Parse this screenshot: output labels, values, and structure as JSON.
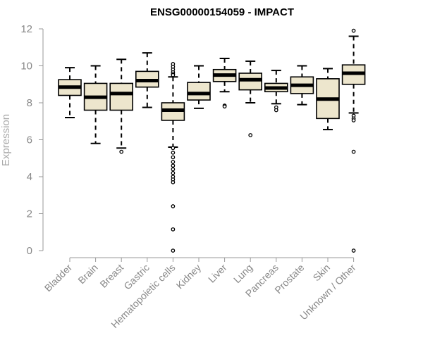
{
  "chart_data": {
    "type": "boxplot",
    "title": "ENSG00000154059 - IMPACT",
    "xlabel": "",
    "ylabel": "Expression",
    "ylim": [
      0,
      12
    ],
    "yticks": [
      0,
      2,
      4,
      6,
      8,
      10,
      12
    ],
    "grid": false,
    "box_fill": "#ede6cd",
    "box_stroke": "#000000",
    "categories": [
      "Bladder",
      "Brain",
      "Breast",
      "Gastric",
      "Hematopoietic cells",
      "Kidney",
      "Liver",
      "Lung",
      "Pancreas",
      "Prostate",
      "Skin",
      "Unknown / Other"
    ],
    "boxes": [
      {
        "low": 7.2,
        "q1": 8.4,
        "median": 8.85,
        "q3": 9.25,
        "high": 9.9,
        "outliers": []
      },
      {
        "low": 5.8,
        "q1": 7.6,
        "median": 8.3,
        "q3": 9.05,
        "high": 10.0,
        "outliers": []
      },
      {
        "low": 5.55,
        "q1": 7.6,
        "median": 8.5,
        "q3": 9.05,
        "high": 10.35,
        "outliers": [
          5.35
        ]
      },
      {
        "low": 7.75,
        "q1": 8.85,
        "median": 9.2,
        "q3": 9.7,
        "high": 10.7,
        "outliers": []
      },
      {
        "low": 5.6,
        "q1": 7.05,
        "median": 7.6,
        "q3": 8.0,
        "high": 9.4,
        "outliers": [
          10.1,
          9.95,
          9.8,
          9.65,
          9.55,
          9.5,
          5.55,
          5.3,
          5.05,
          4.8,
          4.6,
          4.4,
          4.2,
          4.0,
          3.85,
          3.7,
          2.4,
          1.15,
          0.0
        ]
      },
      {
        "low": 7.7,
        "q1": 8.15,
        "median": 8.5,
        "q3": 9.1,
        "high": 10.0,
        "outliers": []
      },
      {
        "low": 8.6,
        "q1": 9.15,
        "median": 9.5,
        "q3": 9.8,
        "high": 10.4,
        "outliers": [
          7.85,
          7.8
        ]
      },
      {
        "low": 8.0,
        "q1": 8.7,
        "median": 9.25,
        "q3": 9.6,
        "high": 10.25,
        "outliers": [
          6.25
        ]
      },
      {
        "low": 7.95,
        "q1": 8.6,
        "median": 8.8,
        "q3": 9.05,
        "high": 9.75,
        "outliers": [
          7.75,
          7.6
        ]
      },
      {
        "low": 7.9,
        "q1": 8.5,
        "median": 8.95,
        "q3": 9.4,
        "high": 10.0,
        "outliers": []
      },
      {
        "low": 6.55,
        "q1": 7.15,
        "median": 8.2,
        "q3": 9.3,
        "high": 9.85,
        "outliers": []
      },
      {
        "low": 7.45,
        "q1": 9.0,
        "median": 9.6,
        "q3": 10.05,
        "high": 11.6,
        "outliers": [
          11.9,
          7.3,
          7.15,
          7.05,
          5.35,
          0.0
        ]
      }
    ]
  }
}
